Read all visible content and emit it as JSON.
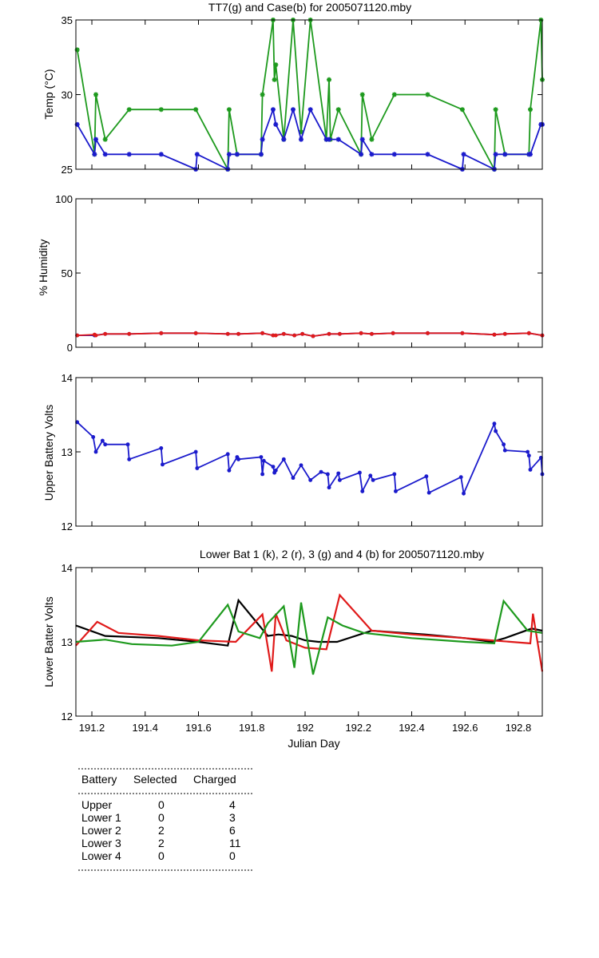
{
  "chart_data": [
    {
      "type": "line",
      "title": "TT7(g) and Case(b) for 2005071120.mby",
      "xlabel": "",
      "ylabel": "Temp  (°C)",
      "xlim": [
        191.14,
        192.89
      ],
      "ylim": [
        25,
        35
      ],
      "yticks": [
        "25",
        "30",
        "35"
      ],
      "series": [
        {
          "name": "TT7",
          "color": "#1e9a1e",
          "x": [
            191.145,
            191.21,
            191.215,
            191.25,
            191.34,
            191.46,
            191.59,
            191.71,
            191.715,
            191.745,
            191.835,
            191.84,
            191.88,
            191.885,
            191.89,
            191.92,
            191.955,
            191.985,
            192.02,
            192.08,
            192.09,
            192.095,
            192.125,
            192.21,
            192.215,
            192.25,
            192.335,
            192.46,
            192.59,
            192.71,
            192.715,
            192.75,
            192.84,
            192.845,
            192.885,
            192.89
          ],
          "y": [
            33,
            26,
            30,
            27,
            29,
            29,
            29,
            25,
            29,
            26,
            26,
            30,
            35,
            31,
            32,
            27,
            35,
            27.5,
            35,
            27,
            31,
            27,
            29,
            26,
            30,
            27,
            30,
            30,
            29,
            25,
            29,
            26,
            26,
            29,
            35,
            31
          ]
        },
        {
          "name": "Case",
          "color": "#1a1acc",
          "x": [
            191.145,
            191.21,
            191.215,
            191.25,
            191.34,
            191.46,
            191.59,
            191.595,
            191.71,
            191.715,
            191.745,
            191.835,
            191.84,
            191.88,
            191.89,
            191.92,
            191.955,
            191.985,
            192.02,
            192.08,
            192.09,
            192.125,
            192.21,
            192.215,
            192.25,
            192.335,
            192.46,
            192.59,
            192.595,
            192.71,
            192.715,
            192.75,
            192.84,
            192.845,
            192.885,
            192.89
          ],
          "y": [
            28,
            26,
            27,
            26,
            26,
            26,
            25,
            26,
            25,
            26,
            26,
            26,
            27,
            29,
            28,
            27,
            29,
            27,
            29,
            27,
            27,
            27,
            26,
            27,
            26,
            26,
            26,
            25,
            26,
            25,
            26,
            26,
            26,
            26,
            28,
            28
          ]
        }
      ]
    },
    {
      "type": "line",
      "title": "",
      "xlabel": "",
      "ylabel": "% Humidity",
      "xlim": [
        191.14,
        192.89
      ],
      "ylim": [
        0,
        100
      ],
      "yticks": [
        "0",
        "50",
        "100"
      ],
      "series": [
        {
          "name": "",
          "color": "#1a1acc",
          "x": [
            191.145,
            191.21,
            191.25,
            191.34,
            191.46,
            191.59,
            191.71,
            191.75,
            191.84,
            191.88,
            191.92,
            191.96,
            191.99,
            192.03,
            192.09,
            192.13,
            192.21,
            192.25,
            192.33,
            192.46,
            192.59,
            192.71,
            192.75,
            192.84,
            192.89
          ],
          "y": [
            8,
            8,
            9,
            9,
            9.5,
            9.5,
            9,
            9,
            9.5,
            8,
            9,
            8,
            9,
            7.5,
            9,
            9,
            9.5,
            9,
            9.5,
            9.5,
            9.5,
            8.5,
            9,
            9.5,
            8
          ]
        },
        {
          "name": "",
          "color": "#e01a1a",
          "x": [
            191.145,
            191.21,
            191.215,
            191.25,
            191.34,
            191.46,
            191.59,
            191.71,
            191.75,
            191.84,
            191.88,
            191.89,
            191.92,
            191.96,
            191.99,
            192.03,
            192.09,
            192.13,
            192.21,
            192.25,
            192.33,
            192.46,
            192.59,
            192.71,
            192.75,
            192.84,
            192.89
          ],
          "y": [
            8,
            8.5,
            8,
            9,
            9,
            9.5,
            9.5,
            9,
            9,
            9.5,
            8,
            8,
            9,
            8,
            9,
            7.5,
            9,
            9,
            9.5,
            9,
            9.5,
            9.5,
            9.5,
            8.5,
            9,
            9.5,
            8
          ]
        }
      ]
    },
    {
      "type": "line",
      "title": "",
      "xlabel": "",
      "ylabel": "Upper Battery Volts",
      "xlim": [
        191.14,
        192.89
      ],
      "ylim": [
        12,
        14
      ],
      "yticks": [
        "12",
        "13",
        "14"
      ],
      "series": [
        {
          "name": "",
          "color": "#1a1acc",
          "x": [
            191.145,
            191.205,
            191.215,
            191.24,
            191.25,
            191.335,
            191.34,
            191.46,
            191.465,
            191.59,
            191.595,
            191.71,
            191.715,
            191.745,
            191.75,
            191.835,
            191.84,
            191.845,
            191.88,
            191.885,
            191.89,
            191.92,
            191.955,
            191.985,
            192.02,
            192.06,
            192.085,
            192.09,
            192.125,
            192.13,
            192.205,
            192.215,
            192.245,
            192.255,
            192.335,
            192.34,
            192.455,
            192.465,
            192.585,
            192.595,
            192.71,
            192.715,
            192.745,
            192.75,
            192.835,
            192.84,
            192.845,
            192.885,
            192.89
          ],
          "y": [
            13.4,
            13.2,
            13.0,
            13.15,
            13.1,
            13.1,
            12.9,
            13.05,
            12.83,
            13.0,
            12.78,
            12.97,
            12.75,
            12.93,
            12.9,
            12.93,
            12.7,
            12.88,
            12.8,
            12.72,
            12.75,
            12.9,
            12.65,
            12.82,
            12.62,
            12.73,
            12.7,
            12.52,
            12.71,
            12.62,
            12.72,
            12.47,
            12.68,
            12.62,
            12.7,
            12.47,
            12.67,
            12.45,
            12.66,
            12.44,
            13.38,
            13.28,
            13.1,
            13.02,
            13.0,
            12.95,
            12.76,
            12.92,
            12.7
          ]
        }
      ]
    },
    {
      "type": "line",
      "title": "Lower Bat 1 (k), 2 (r), 3 (g) and 4 (b) for 2005071120.mby",
      "xlabel": "Julian Day",
      "ylabel": "Lower Batter Volts",
      "xlim": [
        191.14,
        192.89
      ],
      "ylim": [
        12,
        14
      ],
      "yticks": [
        "12",
        "13",
        "14"
      ],
      "xticks": [
        "191.2",
        "191.4",
        "191.6",
        "191.8",
        "192",
        "192.2",
        "192.4",
        "192.6",
        "192.8"
      ],
      "series": [
        {
          "name": "1",
          "color": "#000000",
          "x": [
            191.14,
            191.25,
            191.45,
            191.6,
            191.71,
            191.75,
            191.86,
            191.9,
            191.95,
            192.0,
            192.05,
            192.12,
            192.25,
            192.45,
            192.6,
            192.7,
            192.75,
            192.85,
            192.89
          ],
          "y": [
            13.22,
            13.08,
            13.05,
            13.0,
            12.95,
            13.56,
            13.08,
            13.1,
            13.08,
            13.02,
            13.0,
            13.0,
            13.15,
            13.1,
            13.05,
            13.0,
            13.05,
            13.18,
            13.15
          ]
        },
        {
          "name": "2",
          "color": "#e01a1a",
          "x": [
            191.14,
            191.22,
            191.3,
            191.45,
            191.6,
            191.74,
            191.84,
            191.875,
            191.89,
            191.93,
            192.0,
            192.08,
            192.13,
            192.25,
            192.4,
            192.6,
            192.7,
            192.845,
            192.855,
            192.89
          ],
          "y": [
            12.95,
            13.27,
            13.12,
            13.08,
            13.02,
            13.0,
            13.37,
            12.6,
            13.38,
            13.02,
            12.92,
            12.9,
            13.63,
            13.15,
            13.1,
            13.05,
            13.02,
            12.98,
            13.38,
            12.6
          ]
        },
        {
          "name": "3",
          "color": "#1e9a1e",
          "x": [
            191.14,
            191.25,
            191.35,
            191.5,
            191.6,
            191.71,
            191.75,
            191.83,
            191.86,
            191.92,
            191.96,
            191.985,
            192.03,
            192.085,
            192.14,
            192.22,
            192.4,
            192.6,
            192.71,
            192.745,
            192.835,
            192.89
          ],
          "y": [
            13.0,
            13.03,
            12.97,
            12.95,
            13.0,
            13.5,
            13.14,
            13.05,
            13.25,
            13.48,
            12.65,
            13.53,
            12.56,
            13.33,
            13.22,
            13.12,
            13.05,
            13.0,
            12.98,
            13.55,
            13.15,
            13.12
          ]
        }
      ]
    }
  ],
  "table": {
    "headers": [
      "Battery",
      "Selected",
      "Charged"
    ],
    "rows": [
      [
        "Upper",
        "0",
        "4"
      ],
      [
        "Lower 1",
        "0",
        "3"
      ],
      [
        "Lower 2",
        "2",
        "6"
      ],
      [
        "Lower 3",
        "2",
        "11"
      ],
      [
        "Lower 4",
        "0",
        "0"
      ]
    ]
  }
}
